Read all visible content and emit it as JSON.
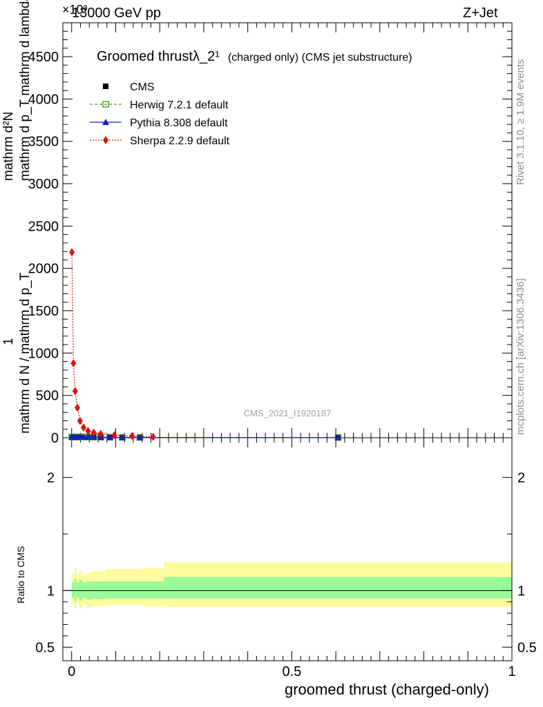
{
  "header": {
    "exponent_label": "×10³",
    "energy_label": "13000 GeV pp",
    "process_label": "Z+Jet"
  },
  "side_labels": {
    "rivet": "Rivet 3.1.10, ≥ 1.9M events",
    "mcplots": "mcplots.cern.ch [arXiv:1306.3436]"
  },
  "colors": {
    "cms": "#000000",
    "herwig": "#4a9a1a",
    "pythia": "#1020c8",
    "sherpa": "#e01010",
    "band_inner": "#98fa98",
    "band_outer": "#fcfc9c",
    "side_text": "#8c8c8c"
  },
  "chart_data": {
    "type": "line",
    "title": "Groomed thrustλ_2¹",
    "title_suffix": "(charged only) (CMS jet substructure)",
    "watermark": "CMS_2021_I1920187",
    "xlabel": "groomed thrust (charged-only)",
    "ylabel_numerator": "mathrm d²N",
    "ylabel_denominator": "mathrm d p_T mathrm d lambda",
    "ylabel_prefactor_num": "1",
    "ylabel_prefactor_den": "mathrm d N / mathrm d p_T",
    "ratio_ylabel": "Ratio to CMS",
    "xlim": [
      -0.02,
      1.0
    ],
    "ylim": [
      0,
      4900
    ],
    "ratio_ylim": [
      0.38,
      2.35
    ],
    "y_ticks": [
      0,
      500,
      1000,
      1500,
      2000,
      2500,
      3000,
      3500,
      4000,
      4500
    ],
    "y_tick_labels": [
      "0",
      "500",
      "1000",
      "1500",
      "2000",
      "2500",
      "3000",
      "3500",
      "4000",
      "4500"
    ],
    "x_ticks": [
      0,
      0.5,
      1
    ],
    "x_tick_labels": [
      "0",
      "0.5",
      "1"
    ],
    "ratio_ticks": [
      0.5,
      1,
      2
    ],
    "ratio_tick_labels": [
      "0.5",
      "1",
      "2"
    ],
    "legend_placement": "top-left",
    "series": [
      {
        "name": "CMS",
        "marker": "square",
        "x": [
          0.0005,
          0.004,
          0.008,
          0.013,
          0.019,
          0.027,
          0.037,
          0.05,
          0.066,
          0.087,
          0.115,
          0.155,
          0.605
        ],
        "y": [
          8,
          8,
          8,
          8,
          8,
          8,
          8,
          7,
          6,
          5,
          4,
          3,
          2
        ]
      },
      {
        "name": "Herwig 7.2.1 default",
        "marker": "open-square",
        "x": [
          0.0005,
          0.004,
          0.008,
          0.013,
          0.019,
          0.027,
          0.037,
          0.05,
          0.066,
          0.087,
          0.115,
          0.155,
          0.605
        ],
        "y": [
          8,
          8,
          8,
          8,
          8,
          8,
          8,
          7,
          6,
          5,
          4,
          3,
          2
        ]
      },
      {
        "name": "Pythia 8.308 default",
        "marker": "triangle",
        "x": [
          0.0005,
          0.004,
          0.008,
          0.013,
          0.019,
          0.027,
          0.037,
          0.05,
          0.066,
          0.087,
          0.115,
          0.155,
          0.605
        ],
        "y": [
          8,
          8,
          8,
          8,
          8,
          8,
          8,
          7,
          6,
          5,
          4,
          3,
          2
        ]
      },
      {
        "name": "Sherpa 2.2.9 default",
        "marker": "diamond",
        "x": [
          0.0005,
          0.004,
          0.008,
          0.013,
          0.019,
          0.027,
          0.037,
          0.05,
          0.066,
          0.097,
          0.137,
          0.185
        ],
        "y": [
          2190,
          880,
          550,
          355,
          200,
          120,
          80,
          60,
          45,
          30,
          20,
          10
        ]
      }
    ],
    "ratio_bands": {
      "edges": [
        0,
        0.006,
        0.011,
        0.017,
        0.025,
        0.034,
        0.047,
        0.076,
        0.116,
        0.16,
        0.21,
        1.0
      ],
      "inner": [
        0.935,
        0.9,
        0.94,
        0.91,
        0.935,
        0.92,
        0.925,
        0.93,
        0.93,
        0.93,
        0.93
      ],
      "inner_hi": [
        1.07,
        1.11,
        1.07,
        1.095,
        1.07,
        1.08,
        1.08,
        1.08,
        1.08,
        1.08,
        1.12
      ],
      "outer_lo": [
        0.88,
        0.84,
        0.89,
        0.84,
        0.88,
        0.85,
        0.86,
        0.87,
        0.87,
        0.86,
        0.855
      ],
      "outer_hi": [
        1.15,
        1.2,
        1.14,
        1.17,
        1.14,
        1.16,
        1.17,
        1.19,
        1.19,
        1.2,
        1.25
      ]
    }
  }
}
